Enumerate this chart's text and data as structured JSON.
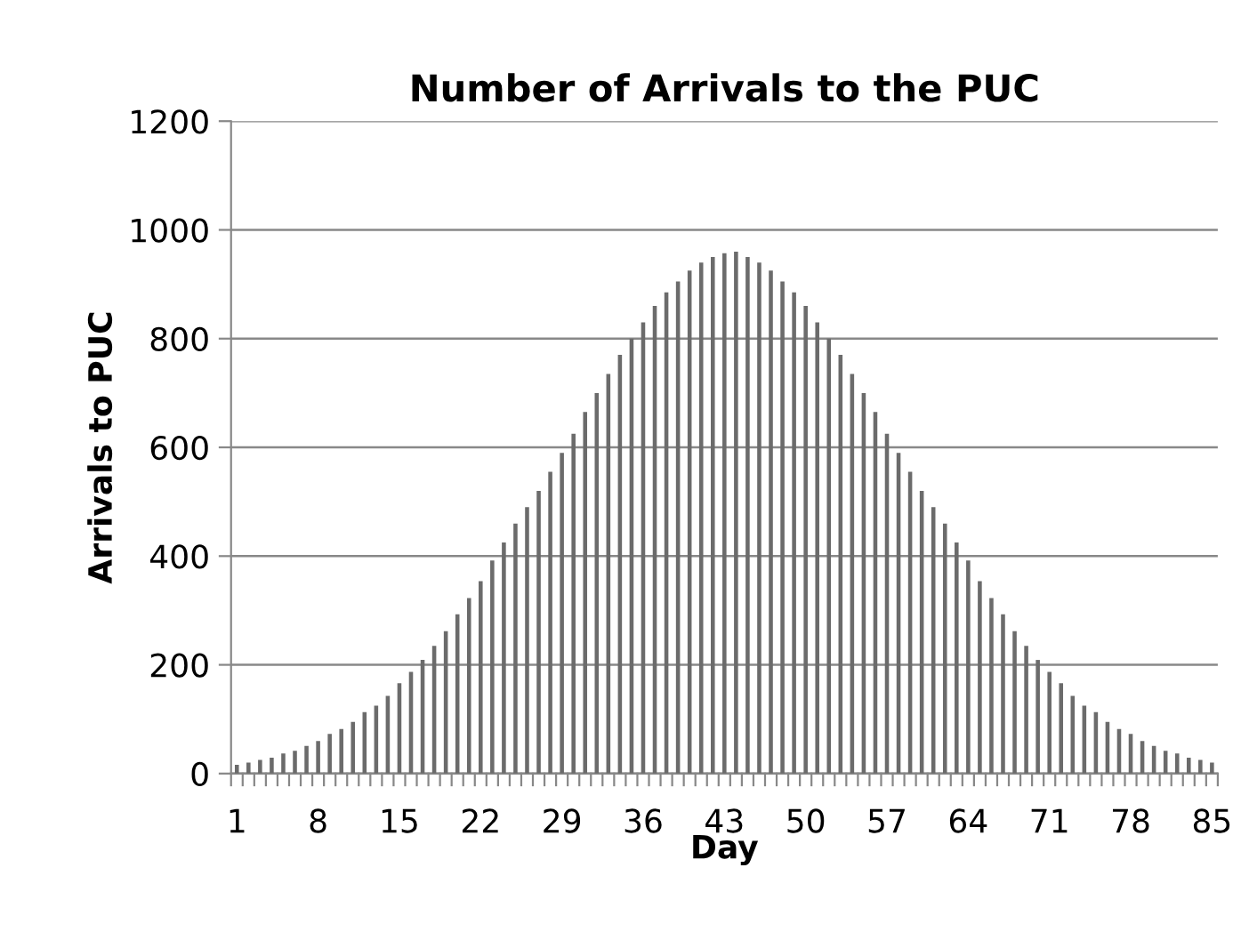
{
  "chart_data": {
    "type": "bar",
    "title": "Number of Arrivals to the PUC",
    "xlabel": "Day",
    "ylabel": "Arrivals to PUC",
    "categories": [
      "1",
      null,
      null,
      null,
      null,
      null,
      null,
      "8",
      null,
      null,
      null,
      null,
      null,
      null,
      "15",
      null,
      null,
      null,
      null,
      null,
      null,
      "22",
      null,
      null,
      null,
      null,
      null,
      null,
      "29",
      null,
      null,
      null,
      null,
      null,
      null,
      "36",
      null,
      null,
      null,
      null,
      null,
      null,
      "43",
      null,
      null,
      null,
      null,
      null,
      null,
      "50",
      null,
      null,
      null,
      null,
      null,
      null,
      "57",
      null,
      null,
      null,
      null,
      null,
      null,
      "64",
      null,
      null,
      null,
      null,
      null,
      null,
      "71",
      null,
      null,
      null,
      null,
      null,
      null,
      "78",
      null,
      null,
      null,
      null,
      null,
      null,
      "85"
    ],
    "values": [
      16,
      20,
      25,
      29,
      37,
      42,
      51,
      60,
      73,
      82,
      95,
      113,
      125,
      143,
      166,
      187,
      209,
      235,
      262,
      293,
      323,
      354,
      392,
      425,
      460,
      490,
      520,
      555,
      590,
      625,
      665,
      700,
      735,
      770,
      800,
      830,
      860,
      885,
      905,
      925,
      940,
      950,
      957,
      960,
      950,
      940,
      925,
      905,
      885,
      860,
      830,
      800,
      770,
      735,
      700,
      665,
      625,
      590,
      555,
      520,
      490,
      460,
      425,
      392,
      354,
      323,
      293,
      262,
      235,
      209,
      187,
      166,
      143,
      125,
      113,
      95,
      82,
      73,
      60,
      51,
      42,
      37,
      29,
      25,
      20
    ],
    "color": "#6b6b6b",
    "ylim": [
      0,
      1200
    ],
    "yticks": [
      0,
      200,
      400,
      600,
      800,
      1000,
      1200
    ],
    "grid": "y"
  }
}
